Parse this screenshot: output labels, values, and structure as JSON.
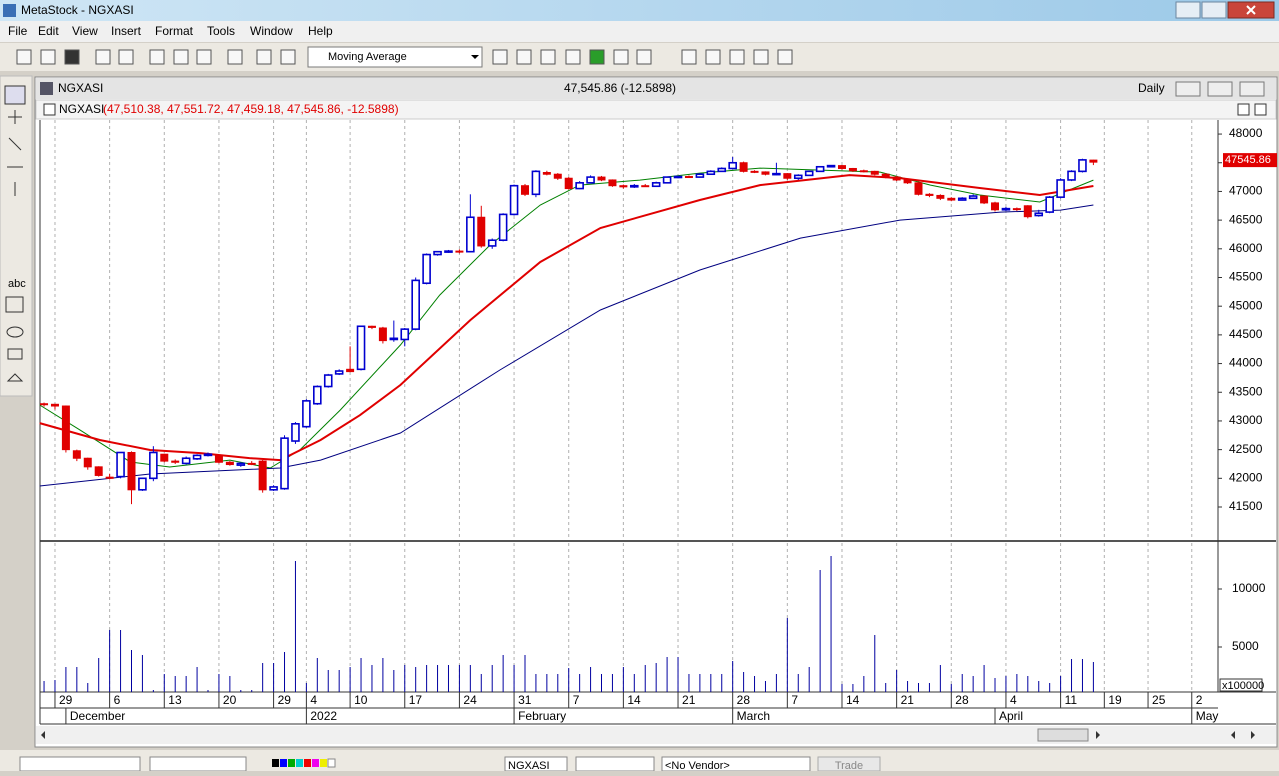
{
  "ui": {
    "app_title": "MetaStock - NGXASI",
    "menu": [
      "File",
      "Edit",
      "View",
      "Insert",
      "Format",
      "Tools",
      "Window",
      "Help"
    ],
    "indicator": "Moving Average",
    "window_title": "NGXASI",
    "window_quote": "47,545.86 (-12.5898)",
    "period": "Daily",
    "tool_text": "abc",
    "status": [
      "NGXASI",
      "<No Vendor>",
      "Trade"
    ]
  },
  "chart_data": {
    "type": "candlestick",
    "title": "NGXASI",
    "header_values": "(47,510.38, 47,551.72, 47,459.18, 47,545.86, -12.5898)",
    "xlim": [
      -0.37,
      107.4
    ],
    "xticks": [
      {
        "value": 1,
        "label": "29"
      },
      {
        "value": 6,
        "label": "6"
      },
      {
        "value": 11,
        "label": "13"
      },
      {
        "value": 16,
        "label": "20"
      },
      {
        "value": 21,
        "label": "29"
      },
      {
        "value": 24,
        "label": "4"
      },
      {
        "value": 28,
        "label": "10"
      },
      {
        "value": 33,
        "label": "17"
      },
      {
        "value": 38,
        "label": "24"
      },
      {
        "value": 43,
        "label": "31"
      },
      {
        "value": 48,
        "label": "7"
      },
      {
        "value": 53,
        "label": "14"
      },
      {
        "value": 58,
        "label": "21"
      },
      {
        "value": 63,
        "label": "28"
      },
      {
        "value": 68,
        "label": "7"
      },
      {
        "value": 73,
        "label": "14"
      },
      {
        "value": 78,
        "label": "21"
      },
      {
        "value": 83,
        "label": "28"
      },
      {
        "value": 88,
        "label": "4"
      },
      {
        "value": 93,
        "label": "11"
      },
      {
        "value": 97,
        "label": "19"
      },
      {
        "value": 101,
        "label": "25"
      },
      {
        "value": 105,
        "label": "2"
      }
    ],
    "month_ticks": [
      {
        "value": 2,
        "label": "December"
      },
      {
        "value": 24,
        "label": "2022"
      },
      {
        "value": 43,
        "label": "February"
      },
      {
        "value": 63,
        "label": "March"
      },
      {
        "value": 87,
        "label": "April"
      },
      {
        "value": 105,
        "label": "May"
      }
    ],
    "ylim": [
      40925,
      48245
    ],
    "yticks": [
      41500,
      42000,
      42500,
      43000,
      43500,
      44000,
      44500,
      45000,
      45500,
      46000,
      46500,
      47000,
      47500,
      48000
    ],
    "last_price": 47545.86,
    "up_color": "#0000d0",
    "down_color": "#e00000",
    "open": [
      43300,
      43290,
      43260,
      42480,
      42350,
      42200,
      42000,
      42030,
      42450,
      41800,
      42000,
      42420,
      42300,
      42260,
      42340,
      42420,
      42400,
      42280,
      42230,
      42260,
      42300,
      41800,
      41820,
      42650,
      42900,
      43300,
      43600,
      43820,
      43900,
      43900,
      44650,
      44620,
      44420,
      44420,
      44600,
      45400,
      45900,
      45950,
      45960,
      45950,
      46550,
      46050,
      46150,
      46600,
      47100,
      46950,
      47330,
      47300,
      47230,
      47050,
      47150,
      47250,
      47200,
      47100,
      47080,
      47100,
      47090,
      47150,
      47250,
      47260,
      47250,
      47300,
      47350,
      47400,
      47500,
      47350,
      47340,
      47300,
      47310,
      47230,
      47280,
      47350,
      47430,
      47450,
      47400,
      47360,
      47350,
      47300,
      47250,
      47200,
      47150,
      46950,
      46930,
      46880,
      46850,
      46880,
      46920,
      46800,
      46680,
      46700,
      46750,
      46580,
      46640,
      46900,
      47200,
      47350,
      47510.38
    ],
    "high": [
      43320,
      43300,
      43270,
      42500,
      42360,
      42210,
      42080,
      42450,
      42470,
      42010,
      42560,
      42430,
      42330,
      42380,
      42420,
      42450,
      42410,
      42300,
      42280,
      42300,
      42320,
      41880,
      42750,
      42980,
      43380,
      43620,
      43820,
      43900,
      44300,
      44660,
      44660,
      44640,
      44750,
      44620,
      45500,
      45920,
      45960,
      45980,
      45990,
      46950,
      46750,
      46180,
      46620,
      47120,
      47130,
      47370,
      47360,
      47320,
      47250,
      47180,
      47280,
      47270,
      47210,
      47120,
      47130,
      47130,
      47170,
      47260,
      47270,
      47280,
      47320,
      47370,
      47420,
      47600,
      47520,
      47370,
      47350,
      47500,
      47320,
      47300,
      47360,
      47440,
      47460,
      47460,
      47410,
      47380,
      47360,
      47320,
      47270,
      47220,
      47160,
      46970,
      46950,
      46900,
      46900,
      46950,
      46930,
      46820,
      46730,
      46720,
      46760,
      46680,
      46920,
      47230,
      47370,
      47570,
      47551.72
    ],
    "low": [
      43250,
      43200,
      42450,
      42300,
      42150,
      42030,
      41980,
      42000,
      41550,
      41780,
      41950,
      42280,
      42250,
      42240,
      42320,
      42380,
      42260,
      42220,
      42200,
      42230,
      41750,
      41780,
      41800,
      42600,
      42880,
      43280,
      43580,
      43800,
      43850,
      43880,
      44600,
      44350,
      44380,
      44300,
      44580,
      45380,
      45880,
      45930,
      45920,
      45940,
      46020,
      46000,
      46130,
      46580,
      46920,
      46900,
      47280,
      47200,
      47030,
      47040,
      47140,
      47180,
      47080,
      47050,
      47060,
      47080,
      47080,
      47140,
      47230,
      47240,
      47240,
      47290,
      47340,
      47390,
      47330,
      47320,
      47280,
      47280,
      47200,
      47200,
      47270,
      47340,
      47420,
      47380,
      47340,
      47330,
      47280,
      47230,
      47180,
      47130,
      46930,
      46900,
      46850,
      46830,
      46840,
      46870,
      46780,
      46650,
      46660,
      46660,
      46530,
      46560,
      46620,
      46880,
      47180,
      47330,
      47459.18
    ],
    "close": [
      43290,
      43260,
      42500,
      42350,
      42200,
      42050,
      42020,
      42450,
      41800,
      42000,
      42450,
      42300,
      42280,
      42350,
      42400,
      42400,
      42280,
      42240,
      42260,
      42250,
      41800,
      41850,
      42700,
      42950,
      43350,
      43600,
      43800,
      43870,
      43860,
      44650,
      44630,
      44400,
      44440,
      44600,
      45450,
      45900,
      45950,
      45960,
      45950,
      46550,
      46050,
      46150,
      46600,
      47100,
      46950,
      47350,
      47300,
      47230,
      47050,
      47150,
      47250,
      47200,
      47100,
      47080,
      47100,
      47090,
      47150,
      47250,
      47260,
      47250,
      47300,
      47350,
      47400,
      47500,
      47350,
      47340,
      47300,
      47310,
      47230,
      47280,
      47350,
      47430,
      47450,
      47400,
      47360,
      47350,
      47300,
      47250,
      47200,
      47150,
      46950,
      46930,
      46880,
      46850,
      46880,
      46920,
      46800,
      46680,
      46700,
      46690,
      46560,
      46620,
      46900,
      47200,
      47350,
      47550,
      47545.86
    ],
    "averages": [
      {
        "color": "#008000",
        "width": 1,
        "x": [
          -0.4,
          3.3,
          7.9,
          11.5,
          17,
          20.7,
          23.4,
          27.1,
          32.6,
          36.2,
          40.8,
          45.4,
          49,
          54.5,
          60,
          65.5,
          71,
          76.5,
          81.1,
          85.6,
          91.1,
          96
        ],
        "values": [
          43277,
          42841,
          42284,
          42197,
          42318,
          42180,
          42493,
          43190,
          44323,
          45194,
          46065,
          46763,
          47111,
          47198,
          47320,
          47407,
          47372,
          47337,
          47111,
          46937,
          46815,
          47198
        ]
      },
      {
        "color": "#e00000",
        "width": 2,
        "x": [
          -0.4,
          5.1,
          9.7,
          14.3,
          18.8,
          21.6,
          25.3,
          28.9,
          32.6,
          39,
          45.4,
          50.9,
          60,
          65.5,
          73.7,
          78.3,
          85.6,
          91.1,
          96
        ],
        "values": [
          42963,
          42667,
          42493,
          42440,
          42353,
          42318,
          42667,
          43100,
          43626,
          44758,
          45770,
          46362,
          46850,
          47110,
          47285,
          47233,
          47060,
          46937,
          47094
        ]
      },
      {
        "color": "#000080",
        "width": 1,
        "x": [
          -0.4,
          9.7,
          21.6,
          25.3,
          32.6,
          41.7,
          50.9,
          60,
          69.2,
          78.3,
          87.5,
          93,
          96
        ],
        "values": [
          41866,
          42075,
          42180,
          42318,
          42789,
          43887,
          44933,
          45630,
          46187,
          46501,
          46640,
          46675,
          46763
        ]
      }
    ],
    "volume": {
      "color": "#0000a0",
      "ylim": [
        1121,
        13966
      ],
      "yticks": [
        5000,
        10000
      ],
      "unit_label": "x100000",
      "values": [
        2070,
        2156,
        3276,
        3276,
        1897,
        4052,
        6466,
        6466,
        4742,
        4311,
        1294,
        2673,
        2501,
        2501,
        3276,
        1294,
        2673,
        2501,
        1294,
        1294,
        3621,
        3621,
        4569,
        12414,
        1897,
        4052,
        3018,
        3018,
        3276,
        4052,
        3449,
        4052,
        3018,
        3449,
        3276,
        3449,
        3449,
        3449,
        3449,
        3449,
        2673,
        3449,
        4311,
        3449,
        4311,
        2673,
        2673,
        2673,
        3190,
        2673,
        3276,
        2673,
        2673,
        3276,
        2673,
        3449,
        3621,
        4138,
        4138,
        2673,
        2673,
        2673,
        2673,
        3794,
        2845,
        2501,
        2070,
        2673,
        7500,
        2673,
        3276,
        11638,
        12845,
        1811,
        1811,
        2501,
        6035,
        1897,
        3018,
        2070,
        1897,
        1897,
        3449,
        1811,
        2673,
        2501,
        3449,
        2328,
        2501,
        2673,
        2501,
        2070,
        1897,
        2501,
        3966,
        3966,
        3707
      ]
    }
  }
}
